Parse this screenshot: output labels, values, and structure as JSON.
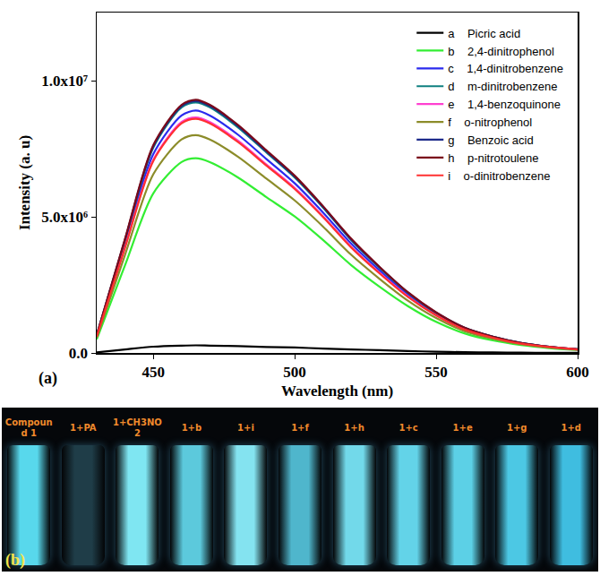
{
  "chart_data": {
    "type": "line",
    "panel_label": "(a)",
    "x_label": "Wavelength (nm)",
    "y_label": "Intensity (a. u)",
    "x": [
      430,
      440,
      450,
      460,
      465,
      470,
      480,
      490,
      500,
      510,
      520,
      530,
      540,
      550,
      560,
      570,
      580,
      590,
      600
    ],
    "xlim": [
      430,
      600
    ],
    "xticks": [
      450,
      500,
      550,
      600
    ],
    "ylim": [
      0,
      12500000.0
    ],
    "yticks": [
      {
        "value": 0,
        "label": "0.0"
      },
      {
        "value": 5000000.0,
        "label": "5.0x10⁶"
      },
      {
        "value": 10000000.0,
        "label": "1.0x10⁷"
      }
    ],
    "grid": false,
    "legend": "top right",
    "series": [
      {
        "letter": "a",
        "name": "Picric acid",
        "color": "#000000",
        "values": [
          20000.0,
          130000.0,
          230000.0,
          270000.0,
          280000.0,
          270000.0,
          250000.0,
          220000.0,
          200000.0,
          160000.0,
          130000.0,
          100000.0,
          70000.0,
          45000.0,
          30000.0,
          20000.0,
          10000.0,
          7000.0,
          4000.0
        ]
      },
      {
        "letter": "b",
        "name": "2,4-dinitrophenol",
        "color": "#33ee33",
        "values": [
          500000.0,
          3220000.0,
          5860000.0,
          7010000.0,
          7150000.0,
          7010000.0,
          6440000.0,
          5720000.0,
          5010000.0,
          4150000.0,
          3220000.0,
          2430000.0,
          1720000.0,
          1140000.0,
          720000.0,
          460000.0,
          290000.0,
          180000.0,
          110000.0
        ]
      },
      {
        "letter": "c",
        "name": "1,4-dinitrobenzene",
        "color": "#2a2aee",
        "values": [
          620000.0,
          4010000.0,
          7300000.0,
          8720000.0,
          8900000.0,
          8720000.0,
          8010000.0,
          7120000.0,
          6230000.0,
          5160000.0,
          4010000.0,
          3030000.0,
          2140000.0,
          1420000.0,
          890000.0,
          580000.0,
          360000.0,
          220000.0,
          130000.0
        ]
      },
      {
        "letter": "d",
        "name": "m-dinitrobenzene",
        "color": "#0f8080",
        "values": [
          640000.0,
          4140000.0,
          7540000.0,
          9020000.0,
          9200000.0,
          9020000.0,
          8280000.0,
          7360000.0,
          6440000.0,
          5340000.0,
          4140000.0,
          3130000.0,
          2210000.0,
          1470000.0,
          920000.0,
          600000.0,
          370000.0,
          230000.0,
          140000.0
        ]
      },
      {
        "letter": "e",
        "name": "1,4-benzoquinone",
        "color": "#ff40d0",
        "values": [
          610000.0,
          3890000.0,
          7090000.0,
          8480000.0,
          8650000.0,
          8480000.0,
          7790000.0,
          6920000.0,
          6060000.0,
          5020000.0,
          3890000.0,
          2940000.0,
          2080000.0,
          1380000.0,
          870000.0,
          560000.0,
          350000.0,
          220000.0,
          130000.0
        ]
      },
      {
        "letter": "f",
        "name": "o-nitrophenol",
        "color": "#8c8c2a",
        "values": [
          560000.0,
          3600000.0,
          6560000.0,
          7840000.0,
          8000000.0,
          7840000.0,
          7200000.0,
          6400000.0,
          5600000.0,
          4640000.0,
          3600000.0,
          2720000.0,
          1920000.0,
          1280000.0,
          800000.0,
          520000.0,
          320000.0,
          200000.0,
          120000.0
        ]
      },
      {
        "letter": "g",
        "name": "Benzoic acid",
        "color": "#1c2a8a",
        "values": [
          650000.0,
          4160000.0,
          7590000.0,
          9070000.0,
          9250000.0,
          9070000.0,
          8330000.0,
          7400000.0,
          6480000.0,
          5370000.0,
          4160000.0,
          3150000.0,
          2220000.0,
          1480000.0,
          930000.0,
          600000.0,
          370000.0,
          230000.0,
          140000.0
        ]
      },
      {
        "letter": "h",
        "name": "p-nitrotoulene",
        "color": "#7a0a1a",
        "values": [
          650000.0,
          4190000.0,
          7630000.0,
          9110000.0,
          9300000.0,
          9110000.0,
          8370000.0,
          7440000.0,
          6510000.0,
          5390000.0,
          4190000.0,
          3160000.0,
          2230000.0,
          1490000.0,
          930000.0,
          600000.0,
          370000.0,
          230000.0,
          140000.0
        ]
      },
      {
        "letter": "i",
        "name": "o-dinitrobenzene",
        "color": "#ff3030",
        "values": [
          600000.0,
          3870000.0,
          7050000.0,
          8430000.0,
          8600000.0,
          8430000.0,
          7740000.0,
          6880000.0,
          6020000.0,
          4990000.0,
          3870000.0,
          2920000.0,
          2060000.0,
          1380000.0,
          860000.0,
          560000.0,
          340000.0,
          220000.0,
          130000.0
        ]
      }
    ]
  },
  "photo": {
    "panel_label": "(b)",
    "vials": [
      {
        "label": "Compound 1",
        "color": "#58d8ec"
      },
      {
        "label": "1+PA",
        "color": "#1f3d48"
      },
      {
        "label": "1+CH3NO2",
        "color": "#7fe6f2"
      },
      {
        "label": "1+b",
        "color": "#5cc9dc"
      },
      {
        "label": "1+i",
        "color": "#84e3f0"
      },
      {
        "label": "1+f",
        "color": "#4fb6cc"
      },
      {
        "label": "1+h",
        "color": "#72d9ea"
      },
      {
        "label": "1+c",
        "color": "#63d3e8"
      },
      {
        "label": "1+e",
        "color": "#5cd0e6"
      },
      {
        "label": "1+g",
        "color": "#4cc8e4"
      },
      {
        "label": "1+d",
        "color": "#3fbde0"
      }
    ]
  }
}
